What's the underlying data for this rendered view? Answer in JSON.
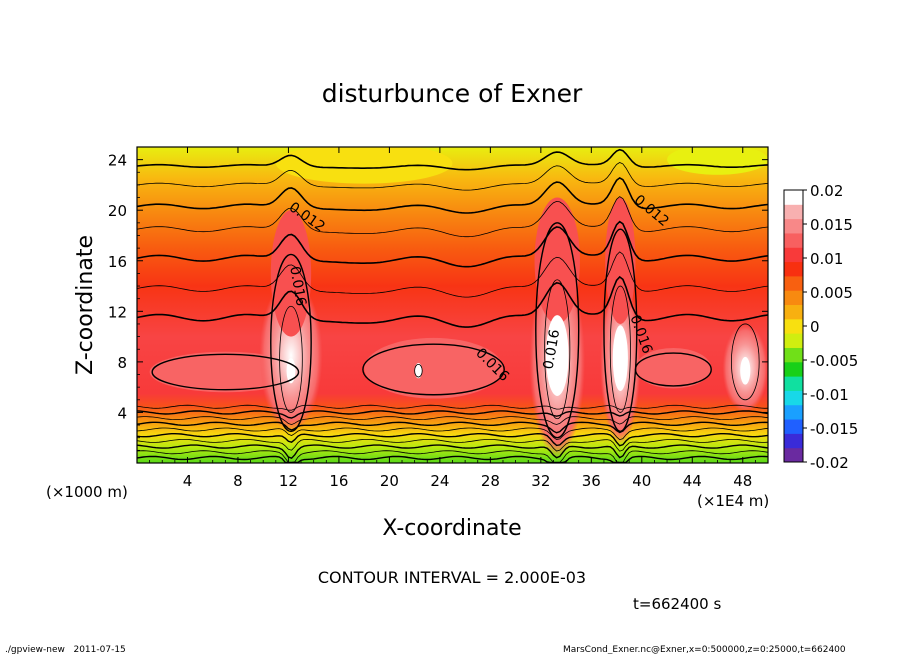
{
  "chart_data": {
    "type": "heatmap",
    "title": "disturbunce of Exner",
    "xlabel": "X-coordinate",
    "ylabel": "Z-coordinate",
    "x_unit_left": "(×1000 m)",
    "x_unit_right": "(×1E4 m)",
    "xlim": [
      0,
      50
    ],
    "ylim": [
      0,
      25
    ],
    "x_ticks": [
      "4",
      "8",
      "12",
      "16",
      "20",
      "24",
      "28",
      "32",
      "36",
      "40",
      "44",
      "48"
    ],
    "x_tick_values": [
      4,
      8,
      12,
      16,
      20,
      24,
      28,
      32,
      36,
      40,
      44,
      48
    ],
    "y_ticks": [
      "4",
      "8",
      "12",
      "16",
      "20",
      "24"
    ],
    "y_tick_values": [
      4,
      8,
      12,
      16,
      20,
      24
    ],
    "colorbar": {
      "labels": [
        "0.02",
        "0.015",
        "0.01",
        "0.005",
        "0",
        "-0.005",
        "-0.01",
        "-0.015",
        "-0.02"
      ],
      "values": [
        0.02,
        0.015,
        0.01,
        0.005,
        0,
        -0.005,
        -0.01,
        -0.015,
        -0.02
      ],
      "range": [
        -0.02,
        0.02
      ],
      "colors_bottom_to_top": [
        "#6a2aa0",
        "#3a2bd8",
        "#2060ff",
        "#1aa0ff",
        "#18d8e8",
        "#10e0a0",
        "#18d018",
        "#70e018",
        "#d0ee10",
        "#f8e010",
        "#f8b010",
        "#f88a10",
        "#f86010",
        "#f83010",
        "#f83a3a",
        "#f86060",
        "#f88888",
        "#f8b0b0",
        "#ffffff"
      ]
    },
    "contour_labels": [
      {
        "text": "0.012",
        "x": 13.5,
        "y": 19.5
      },
      {
        "text": "0.012",
        "x": 40.8,
        "y": 20.0
      },
      {
        "text": "0.016",
        "x": 12.8,
        "y": 14.0
      },
      {
        "text": "0.016",
        "x": 32.8,
        "y": 9.0
      },
      {
        "text": "0.016",
        "x": 28.2,
        "y": 7.8
      },
      {
        "text": "0.016",
        "x": 40.0,
        "y": 10.2
      }
    ],
    "contour_interval_text": "CONTOUR INTERVAL = 2.000E-03",
    "time_text": "t=662400 s"
  },
  "footer": {
    "left": "./gpview-new   2011-07-15",
    "right": "MarsCond_Exner.nc@Exner,x=0:500000,z=0:25000,t=662400"
  }
}
